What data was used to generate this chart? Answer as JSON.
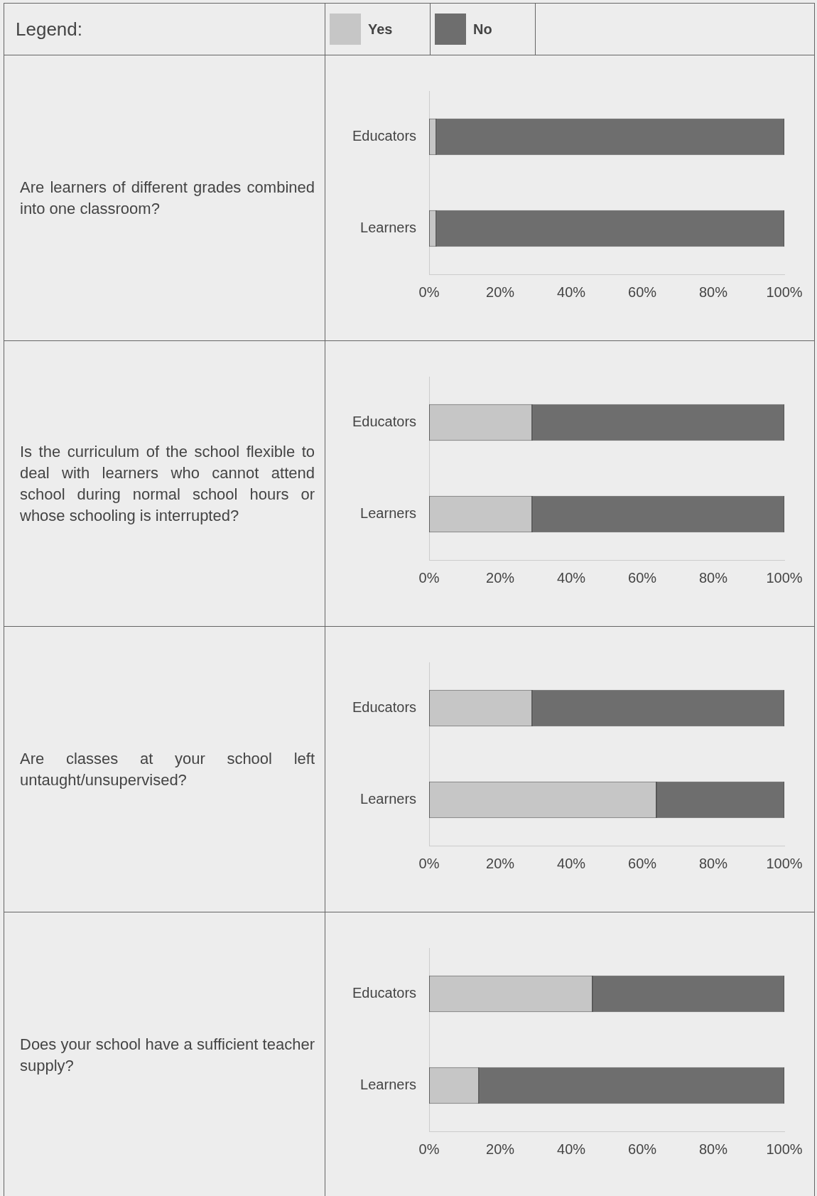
{
  "chart_data": [
    {
      "type": "bar",
      "orientation": "horizontal",
      "stacked": true,
      "title": "Are learners of different grades combined into one classroom?",
      "legend": "top",
      "legend_title": "Legend:",
      "categories": [
        "Educators",
        "Learners"
      ],
      "xlim": [
        0,
        100
      ],
      "xticks": [
        {
          "value": 0,
          "label": "0%"
        },
        {
          "value": 20,
          "label": "20%"
        },
        {
          "value": 40,
          "label": "40%"
        },
        {
          "value": 60,
          "label": "60%"
        },
        {
          "value": 80,
          "label": "80%"
        },
        {
          "value": 100,
          "label": "100%"
        }
      ],
      "grid": false,
      "series": [
        {
          "name": "Yes",
          "color": "#c6c6c6",
          "values": [
            2,
            2
          ]
        },
        {
          "name": "No",
          "color": "#6e6e6e",
          "values": [
            98,
            98
          ]
        }
      ]
    },
    {
      "type": "bar",
      "orientation": "horizontal",
      "stacked": true,
      "title": "Is the curriculum of the school flexible to deal with learners who cannot attend school during normal school hours or whose schooling is interrupted?",
      "categories": [
        "Educators",
        "Learners"
      ],
      "xlim": [
        0,
        100
      ],
      "xticks": [
        {
          "value": 0,
          "label": "0%"
        },
        {
          "value": 20,
          "label": "20%"
        },
        {
          "value": 40,
          "label": "40%"
        },
        {
          "value": 60,
          "label": "60%"
        },
        {
          "value": 80,
          "label": "80%"
        },
        {
          "value": 100,
          "label": "100%"
        }
      ],
      "grid": false,
      "series": [
        {
          "color": "#c6c6c6",
          "values": [
            29,
            29
          ]
        },
        {
          "color": "#6e6e6e",
          "values": [
            71,
            71
          ]
        }
      ]
    },
    {
      "type": "bar",
      "orientation": "horizontal",
      "stacked": true,
      "title": "Are classes at your school left untaught/unsupervised?",
      "categories": [
        "Educators",
        "Learners"
      ],
      "xlim": [
        0,
        100
      ],
      "xticks": [
        {
          "value": 0,
          "label": "0%"
        },
        {
          "value": 20,
          "label": "20%"
        },
        {
          "value": 40,
          "label": "40%"
        },
        {
          "value": 60,
          "label": "60%"
        },
        {
          "value": 80,
          "label": "80%"
        },
        {
          "value": 100,
          "label": "100%"
        }
      ],
      "grid": false,
      "series": [
        {
          "color": "#c6c6c6",
          "values": [
            29,
            64
          ]
        },
        {
          "color": "#6e6e6e",
          "values": [
            71,
            36
          ]
        }
      ]
    },
    {
      "type": "bar",
      "orientation": "horizontal",
      "stacked": true,
      "title": "Does your school have a sufficient teacher supply?",
      "categories": [
        "Educators",
        "Learners"
      ],
      "xlim": [
        0,
        100
      ],
      "xticks": [
        {
          "value": 0,
          "label": "0%"
        },
        {
          "value": 20,
          "label": "20%"
        },
        {
          "value": 40,
          "label": "40%"
        },
        {
          "value": 60,
          "label": "60%"
        },
        {
          "value": 80,
          "label": "80%"
        },
        {
          "value": 100,
          "label": "100%"
        }
      ],
      "grid": false,
      "series": [
        {
          "color": "#c6c6c6",
          "values": [
            46,
            14
          ]
        },
        {
          "color": "#6e6e6e",
          "values": [
            54,
            86
          ]
        }
      ]
    }
  ]
}
